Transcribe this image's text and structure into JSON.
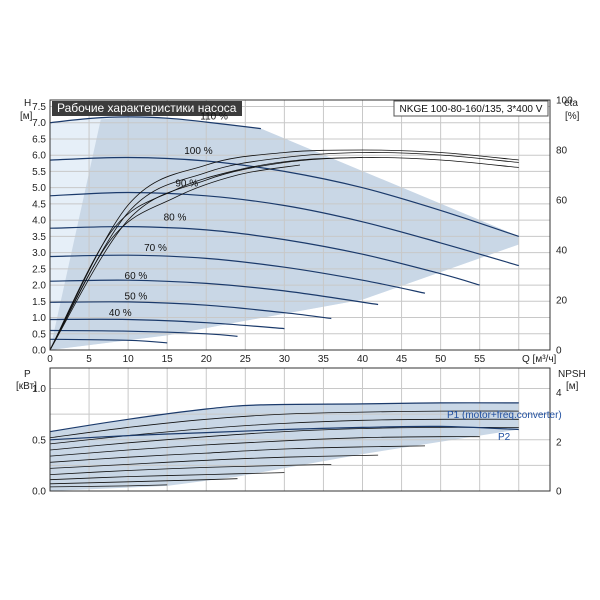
{
  "colors": {
    "envelope_fill": "#c9d7e6",
    "envelope_light": "#e6eff8",
    "curve": "#1b3a6b",
    "title_bg": "#3c3c3c",
    "p_label": "#1f4fa0"
  },
  "chart_data": [
    {
      "type": "line",
      "title": "Рабочие характеристики насоса",
      "model_label": "NKGE 100-80-160/135, 3*400 V",
      "ylabel": "H",
      "yunit": "[м]",
      "y2label": "eta",
      "y2unit": "[%]",
      "xlabel": "Q [м³/ч]",
      "xlim": [
        0,
        64
      ],
      "ylim": [
        0,
        7.7
      ],
      "y2lim": [
        0,
        100
      ],
      "xticks": [
        0,
        5,
        10,
        15,
        20,
        25,
        30,
        35,
        40,
        45,
        50,
        55
      ],
      "yticks": [
        0.0,
        0.5,
        1.0,
        1.5,
        2.0,
        2.5,
        3.0,
        3.5,
        4.0,
        4.5,
        5.0,
        5.5,
        6.0,
        6.5,
        7.0,
        7.5
      ],
      "ytick_labels": [
        "0.0",
        "0.5",
        "1.0",
        "1.5",
        "2.0",
        "2.5",
        "3.0",
        "3.5",
        "4.0",
        "4.5",
        "5.0",
        "5.5",
        "6.0",
        "6.5",
        "7.0",
        "7.5"
      ],
      "y2ticks": [
        0,
        20,
        40,
        60,
        80,
        100
      ],
      "grid": true,
      "series": [
        {
          "name": "110 %",
          "x": [
            0,
            5,
            10,
            15,
            20,
            27
          ],
          "y": [
            7.0,
            7.13,
            7.18,
            7.14,
            7.02,
            6.82
          ]
        },
        {
          "name": "100 %",
          "x": [
            0,
            10,
            20,
            30,
            40,
            50,
            60
          ],
          "y": [
            5.85,
            5.93,
            5.82,
            5.5,
            5.0,
            4.3,
            3.5
          ]
        },
        {
          "name": "90 %",
          "x": [
            0,
            10,
            20,
            30,
            40,
            50,
            60
          ],
          "y": [
            4.75,
            4.85,
            4.75,
            4.45,
            3.95,
            3.3,
            2.6
          ]
        },
        {
          "name": "80 %",
          "x": [
            0,
            10,
            20,
            30,
            40,
            50,
            55
          ],
          "y": [
            3.75,
            3.8,
            3.7,
            3.4,
            2.95,
            2.35,
            2.0
          ]
        },
        {
          "name": "70 %",
          "x": [
            0,
            10,
            20,
            30,
            40,
            48
          ],
          "y": [
            2.88,
            2.92,
            2.82,
            2.55,
            2.15,
            1.75
          ]
        },
        {
          "name": "60 %",
          "x": [
            0,
            10,
            20,
            30,
            42
          ],
          "y": [
            2.12,
            2.15,
            2.05,
            1.82,
            1.4
          ]
        },
        {
          "name": "50 %",
          "x": [
            0,
            10,
            20,
            30,
            36
          ],
          "y": [
            1.47,
            1.48,
            1.38,
            1.15,
            0.97
          ]
        },
        {
          "name": "40 %",
          "x": [
            0,
            10,
            20,
            30
          ],
          "y": [
            0.94,
            0.94,
            0.84,
            0.66
          ]
        },
        {
          "name": "",
          "x": [
            0,
            10,
            20,
            24
          ],
          "y": [
            0.6,
            0.58,
            0.5,
            0.42
          ]
        },
        {
          "name": "",
          "x": [
            0,
            10,
            15
          ],
          "y": [
            0.33,
            0.3,
            0.22
          ]
        }
      ],
      "efficiency_curves": [
        {
          "x": [
            0,
            10,
            20,
            30,
            40,
            50,
            60
          ],
          "y": [
            0,
            58,
            74,
            79,
            80,
            79,
            76
          ]
        },
        {
          "x": [
            0,
            10,
            20,
            30,
            40,
            50,
            60
          ],
          "y": [
            0,
            55,
            71,
            77,
            79,
            78,
            75
          ]
        },
        {
          "x": [
            0,
            10,
            20,
            30,
            40,
            50,
            60
          ],
          "y": [
            0,
            52,
            68,
            75,
            77,
            76,
            73
          ]
        },
        {
          "x": [
            0,
            8,
            16,
            24,
            32,
            40
          ],
          "y": [
            0,
            48,
            64,
            72,
            76,
            77
          ]
        },
        {
          "x": [
            0,
            8,
            16,
            24,
            32
          ],
          "y": [
            0,
            45,
            61,
            70,
            74
          ]
        }
      ]
    },
    {
      "type": "line",
      "ylabel": "P",
      "yunit": "[кВт]",
      "y2label": "NPSH",
      "y2unit": "[м]",
      "xlim": [
        0,
        64
      ],
      "ylim": [
        0,
        1.2
      ],
      "y2lim": [
        0,
        5
      ],
      "yticks": [
        0.0,
        0.5,
        1.0
      ],
      "ytick_labels": [
        "0.0",
        "0.5",
        "1.0"
      ],
      "y2ticks": [
        0,
        2,
        4
      ],
      "grid": true,
      "series": [
        {
          "name": "P1 (motor+freq.converter)",
          "x": [
            0,
            10,
            20,
            27,
            40,
            50,
            60
          ],
          "y": [
            0.58,
            0.7,
            0.8,
            0.84,
            0.85,
            0.86,
            0.86
          ]
        },
        {
          "name": "P2",
          "x": [
            0,
            10,
            20,
            30,
            40,
            50,
            60
          ],
          "y": [
            0.5,
            0.54,
            0.57,
            0.6,
            0.62,
            0.63,
            0.6
          ]
        }
      ],
      "other_power_curves": [
        {
          "x": [
            0,
            10,
            20,
            30,
            40,
            50,
            60
          ],
          "y": [
            0.52,
            0.62,
            0.7,
            0.75,
            0.77,
            0.78,
            0.78
          ]
        },
        {
          "x": [
            0,
            10,
            20,
            30,
            40,
            50,
            60
          ],
          "y": [
            0.46,
            0.54,
            0.61,
            0.66,
            0.69,
            0.7,
            0.7
          ]
        },
        {
          "x": [
            0,
            10,
            20,
            30,
            40,
            50,
            60
          ],
          "y": [
            0.4,
            0.47,
            0.53,
            0.58,
            0.61,
            0.62,
            0.62
          ]
        },
        {
          "x": [
            0,
            10,
            20,
            30,
            40,
            50,
            55
          ],
          "y": [
            0.34,
            0.4,
            0.45,
            0.49,
            0.52,
            0.53,
            0.53
          ]
        },
        {
          "x": [
            0,
            10,
            20,
            30,
            40,
            48
          ],
          "y": [
            0.28,
            0.33,
            0.37,
            0.41,
            0.43,
            0.44
          ]
        },
        {
          "x": [
            0,
            10,
            20,
            30,
            42
          ],
          "y": [
            0.22,
            0.26,
            0.3,
            0.33,
            0.35
          ]
        },
        {
          "x": [
            0,
            10,
            20,
            30,
            36
          ],
          "y": [
            0.16,
            0.2,
            0.23,
            0.25,
            0.26
          ]
        },
        {
          "x": [
            0,
            10,
            20,
            30
          ],
          "y": [
            0.11,
            0.14,
            0.16,
            0.18
          ]
        },
        {
          "x": [
            0,
            10,
            20,
            24
          ],
          "y": [
            0.07,
            0.09,
            0.11,
            0.12
          ]
        },
        {
          "x": [
            0,
            10,
            15
          ],
          "y": [
            0.04,
            0.05,
            0.06
          ]
        }
      ]
    }
  ]
}
